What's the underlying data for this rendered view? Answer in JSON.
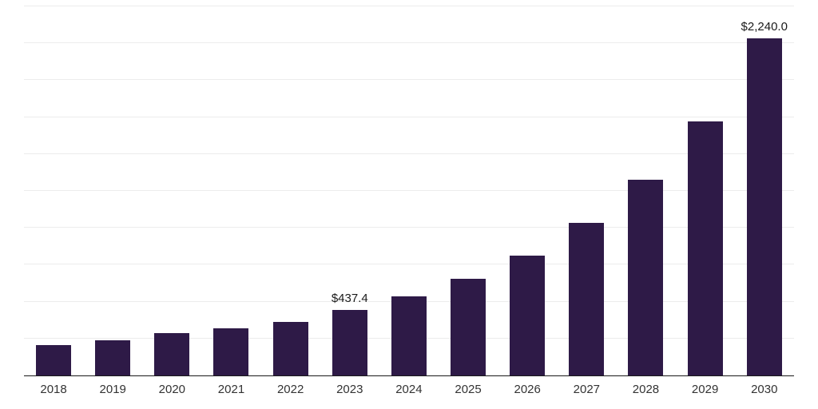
{
  "chart_data": {
    "type": "bar",
    "title": "",
    "xlabel": "",
    "ylabel": "",
    "categories": [
      "2018",
      "2019",
      "2020",
      "2021",
      "2022",
      "2023",
      "2024",
      "2025",
      "2026",
      "2027",
      "2028",
      "2029",
      "2030"
    ],
    "values": [
      201,
      233,
      281,
      313,
      355,
      437.4,
      525,
      641,
      795,
      1012,
      1300,
      1686,
      2240
    ],
    "ylim": [
      0,
      2450
    ],
    "grid": true,
    "gridline_intervals": 10,
    "legend": "none",
    "data_labels": [
      {
        "category": "2023",
        "text": "$437.4"
      },
      {
        "category": "2030",
        "text": "$2,240.0"
      }
    ],
    "colors": {
      "bar": "#2e1a47",
      "gridline": "#ececec",
      "axis": "#1a1a1a",
      "background": "#ffffff",
      "label_text": "#1a1a1a",
      "tick_text": "#333333"
    }
  }
}
